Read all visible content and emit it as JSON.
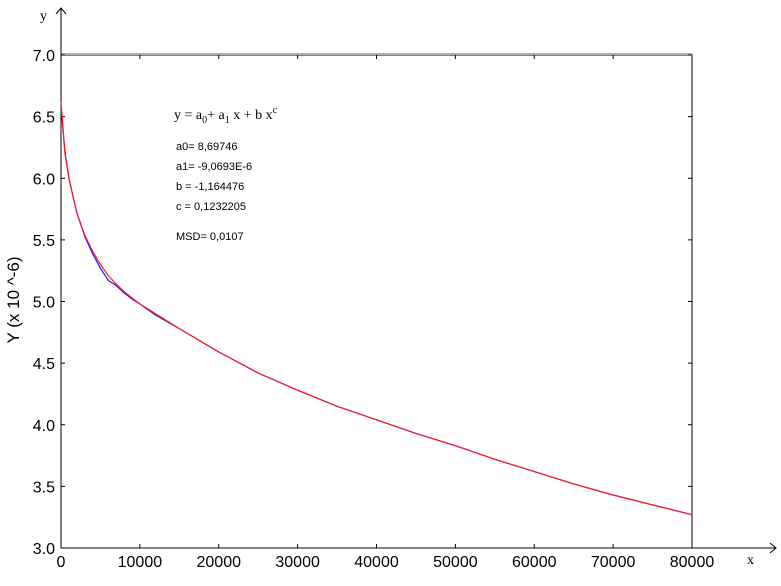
{
  "chart_data": {
    "type": "line",
    "xlabel": "x",
    "ylabel": "Y (x 10 ^-6)",
    "axis_arrow_labels": {
      "x": "x",
      "y": "y"
    },
    "xlim": [
      0,
      80000
    ],
    "ylim": [
      3.0,
      7.0
    ],
    "x_ticks": [
      0,
      10000,
      20000,
      30000,
      40000,
      50000,
      60000,
      70000,
      80000
    ],
    "x_tick_labels": [
      "0",
      "10000",
      "20000",
      "30000",
      "40000",
      "50000",
      "60000",
      "70000",
      "80000"
    ],
    "y_ticks": [
      3.0,
      3.5,
      4.0,
      4.5,
      5.0,
      5.5,
      6.0,
      6.5,
      7.0
    ],
    "y_tick_labels": [
      "3.0",
      "3.5",
      "4.0",
      "4.5",
      "5.0",
      "5.5",
      "6.0",
      "6.5",
      "7.0"
    ],
    "grid": false,
    "series": [
      {
        "color": "#1a1aff",
        "x": [
          0,
          500,
          1000,
          2000,
          3000,
          4000,
          5000,
          6000,
          7000,
          8000,
          9000,
          10000,
          12000,
          15000,
          20000,
          25000,
          30000,
          35000,
          40000,
          45000,
          50000,
          55000,
          60000,
          65000,
          70000,
          75000,
          80000
        ],
        "y": [
          6.58,
          6.22,
          6.0,
          5.72,
          5.53,
          5.39,
          5.27,
          5.17,
          5.13,
          5.07,
          5.02,
          4.98,
          4.89,
          4.78,
          4.59,
          4.42,
          4.28,
          4.15,
          4.04,
          3.93,
          3.83,
          3.72,
          3.62,
          3.52,
          3.43,
          3.35,
          3.27
        ]
      },
      {
        "color": "#ff1a1a",
        "x": [
          0,
          500,
          1000,
          2000,
          3000,
          4000,
          5000,
          6000,
          7000,
          8000,
          9000,
          10000,
          12000,
          15000,
          20000,
          25000,
          30000,
          35000,
          40000,
          45000,
          50000,
          55000,
          60000,
          65000,
          70000,
          75000,
          80000
        ],
        "y": [
          6.62,
          6.2,
          6.0,
          5.72,
          5.54,
          5.41,
          5.3,
          5.21,
          5.14,
          5.08,
          5.03,
          4.98,
          4.9,
          4.78,
          4.59,
          4.42,
          4.28,
          4.15,
          4.04,
          3.93,
          3.83,
          3.72,
          3.62,
          3.52,
          3.43,
          3.35,
          3.27
        ]
      }
    ],
    "annotation": {
      "formula": {
        "lead": "y = a",
        "sub0": "0",
        "mid": "+ a",
        "sub1": "1",
        "tail": " x  + b x",
        "sup": "c"
      },
      "params": [
        "a0= 8,69746",
        "a1= -9,0693E-6",
        "b = -1,164476",
        "c = 0,1232205"
      ],
      "msd": "MSD= 0,0107"
    }
  }
}
